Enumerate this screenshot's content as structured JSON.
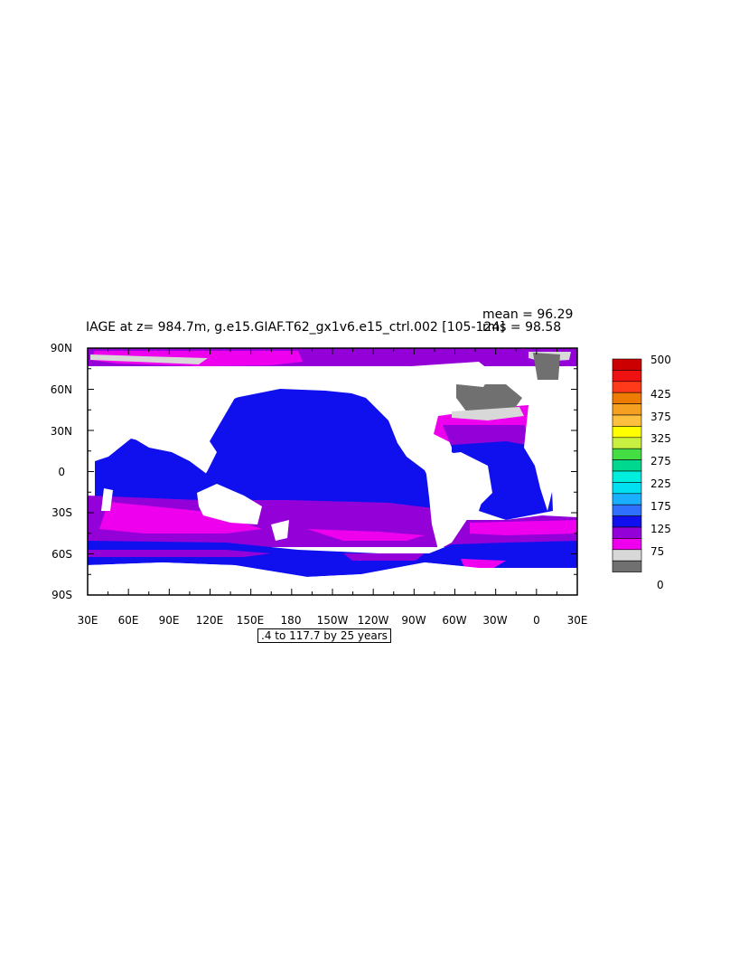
{
  "title": "IAGE at z= 984.7m, g.e15.GIAF.T62_gx1v6.e15_ctrl.002 [105-124]",
  "stats": {
    "mean": "mean = 96.29",
    "rms": "rms = 98.58"
  },
  "range_note": ".4 to 117.7 by 25 years",
  "axes": {
    "lat_labels": [
      "90N",
      "60N",
      "30N",
      "0",
      "30S",
      "60S",
      "90S"
    ],
    "lon_labels": [
      "30E",
      "60E",
      "90E",
      "120E",
      "150E",
      "180",
      "150W",
      "120W",
      "90W",
      "60W",
      "30W",
      "0",
      "30E"
    ]
  },
  "colorbar": {
    "labels": [
      "500",
      "425",
      "375",
      "325",
      "275",
      "225",
      "175",
      "125",
      "75",
      "0"
    ],
    "colors": [
      "#cc0000",
      "#ee1111",
      "#ff3a1a",
      "#ee7c00",
      "#f5a020",
      "#ffc040",
      "#ffff00",
      "#c8f040",
      "#44dd44",
      "#00d890",
      "#00eedd",
      "#00e0f0",
      "#1ab0ff",
      "#3070ff",
      "#1010ee",
      "#9400d8",
      "#ee00ee",
      "#d8d8d8",
      "#707070"
    ]
  },
  "map": {
    "colors": {
      "land": "#ffffff",
      "gray_dark": "#707070",
      "gray_light": "#d8d8d8",
      "magenta": "#ee00ee",
      "purple": "#9400d8",
      "blue": "#1010ee"
    }
  }
}
